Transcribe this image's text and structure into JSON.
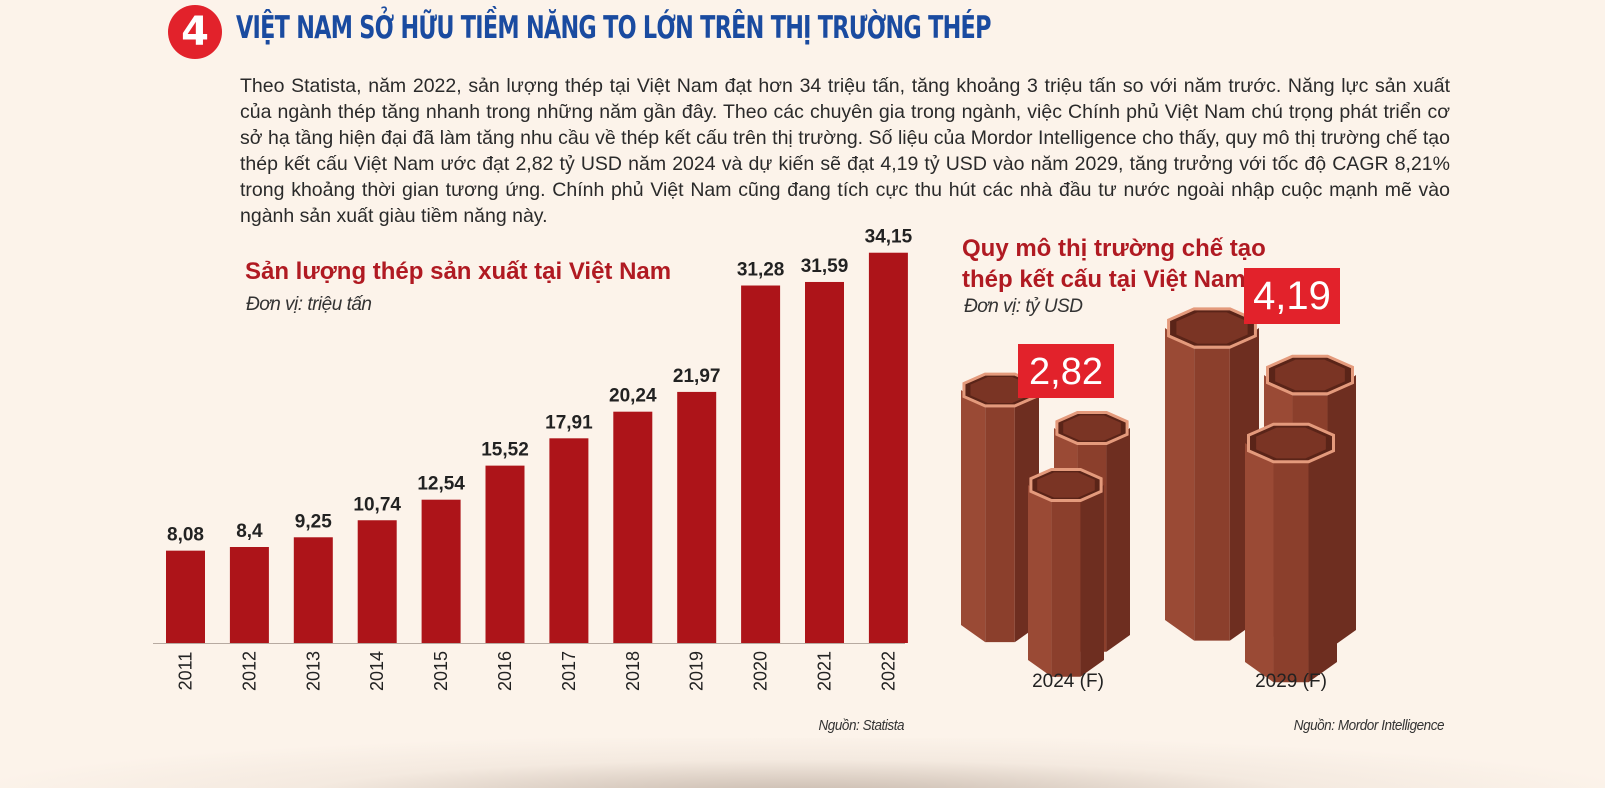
{
  "header": {
    "number": "4",
    "title": "VIỆT NAM SỞ HỮU TIỀM NĂNG TO LỚN TRÊN THỊ TRƯỜNG THÉP"
  },
  "intro_text": "Theo Statista, năm 2022, sản lượng thép tại Việt Nam đạt hơn 34 triệu tấn, tăng khoảng 3 triệu tấn so với năm trước. Năng lực sản xuất của ngành thép tăng nhanh trong những năm gần đây. Theo các chuyên gia trong ngành, việc Chính phủ Việt Nam chú trọng phát triển cơ sở hạ tầng hiện đại đã làm tăng nhu cầu về thép kết cấu trên thị trường. Số liệu của Mordor Intelligence cho thấy, quy mô thị trường chế tạo thép kết cấu Việt Nam ước đạt 2,82 tỷ USD năm 2024 và dự kiến sẽ đạt 4,19 tỷ USD vào năm 2029, tăng trưởng với tốc độ CAGR 8,21% trong khoảng thời gian tương ứng. Chính phủ Việt Nam cũng đang tích cực thu hút các nhà đầu tư nước ngoài nhập cuộc mạnh mẽ vào ngành sản xuất giàu tiềm năng này.",
  "colors": {
    "bar": "#ad1419",
    "accent_red": "#e2222b",
    "title_blue": "#1a4ba0",
    "title_red": "#b01a22",
    "hex_body": "#8b3f2c",
    "hex_rim": "#e49a7c"
  },
  "chart_data": [
    {
      "type": "bar",
      "title": "Sản lượng thép sản xuất tại Việt Nam",
      "subtitle": "Đơn vị: triệu tấn",
      "source": "Nguồn: Statista",
      "categories": [
        "2011",
        "2012",
        "2013",
        "2014",
        "2015",
        "2016",
        "2017",
        "2018",
        "2019",
        "2020",
        "2021",
        "2022"
      ],
      "values": [
        8.08,
        8.4,
        9.25,
        10.74,
        12.54,
        15.52,
        17.91,
        20.24,
        21.97,
        31.28,
        31.59,
        34.15
      ],
      "labels": [
        "8,08",
        "8,4",
        "9,25",
        "10,74",
        "12,54",
        "15,52",
        "17,91",
        "20,24",
        "21,97",
        "31,28",
        "31,59",
        "34,15"
      ],
      "ylim": [
        0,
        35
      ],
      "grid": false
    },
    {
      "type": "bar",
      "title": "Quy mô thị trường chế tạo thép kết cấu tại Việt Nam",
      "subtitle": "Đơn vị: tỷ USD",
      "source": "Nguồn: Mordor Intelligence",
      "categories": [
        "2024 (F)",
        "2029 (F)"
      ],
      "values": [
        2.82,
        4.19
      ],
      "labels": [
        "2,82",
        "4,19"
      ],
      "grid": false
    }
  ]
}
